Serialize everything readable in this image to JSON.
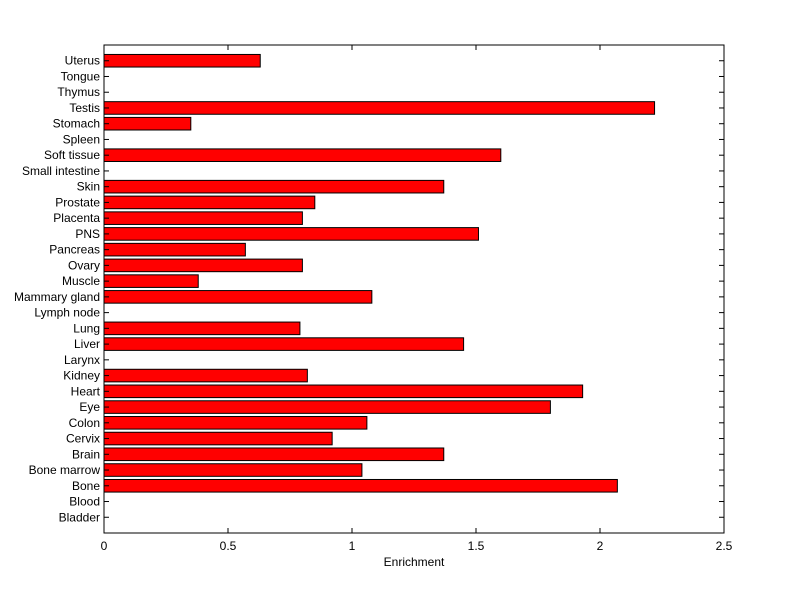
{
  "chart_data": {
    "type": "bar",
    "orientation": "horizontal",
    "title": "",
    "xlabel": "Enrichment",
    "ylabel": "",
    "xlim": [
      0,
      2.5
    ],
    "xticks": [
      "0",
      "0.5",
      "1",
      "1.5",
      "2",
      "2.5"
    ],
    "grid": false,
    "bar_color": "#ff0000",
    "categories": [
      "Bladder",
      "Blood",
      "Bone",
      "Bone marrow",
      "Brain",
      "Cervix",
      "Colon",
      "Eye",
      "Heart",
      "Kidney",
      "Larynx",
      "Liver",
      "Lung",
      "Lymph node",
      "Mammary gland",
      "Muscle",
      "Ovary",
      "Pancreas",
      "PNS",
      "Placenta",
      "Prostate",
      "Skin",
      "Small intestine",
      "Soft tissue",
      "Spleen",
      "Stomach",
      "Testis",
      "Thymus",
      "Tongue",
      "Uterus"
    ],
    "values": [
      0,
      0,
      2.07,
      1.04,
      1.37,
      0.92,
      1.06,
      1.8,
      1.93,
      0.82,
      0,
      1.45,
      0.79,
      0,
      1.08,
      0.38,
      0.8,
      0.57,
      1.51,
      0.8,
      0.85,
      1.37,
      0,
      1.6,
      0,
      0.35,
      2.22,
      0,
      0,
      0.63
    ]
  }
}
